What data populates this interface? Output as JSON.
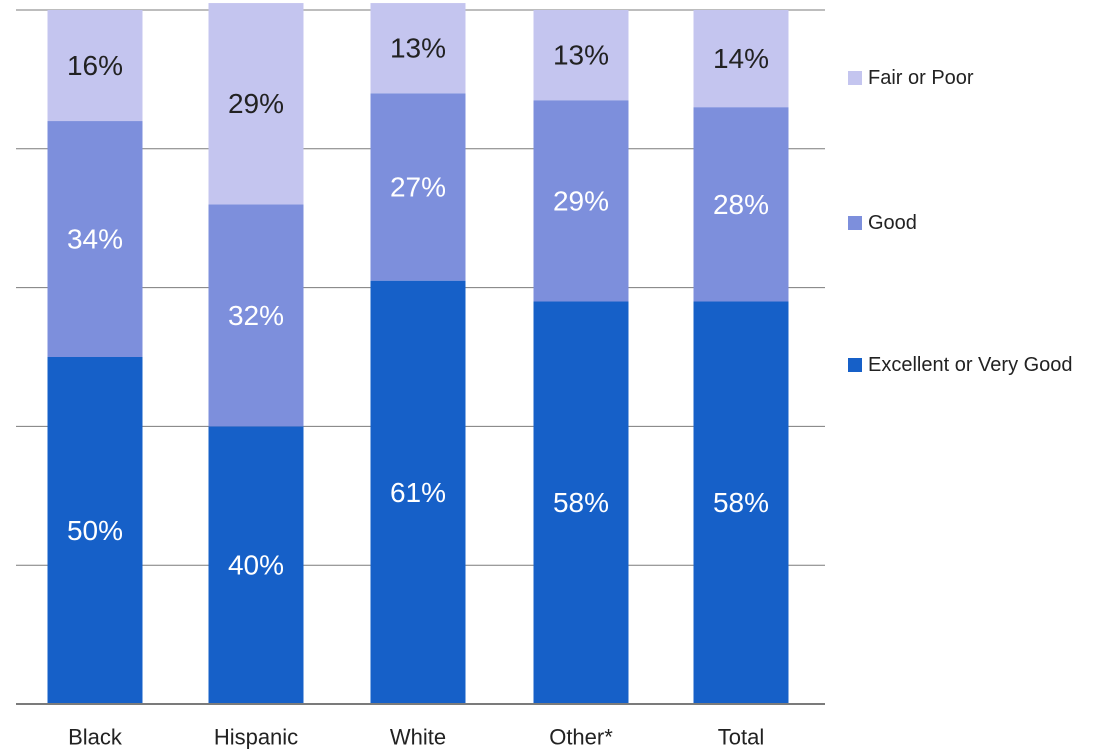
{
  "chart_data": {
    "type": "bar",
    "stacked": true,
    "categories": [
      "Black",
      "Hispanic",
      "White",
      "Other*",
      "Total"
    ],
    "series": [
      {
        "name": "Excellent or Very Good",
        "color": "#1660c8",
        "label_color": "#ffffff",
        "values": [
          50,
          40,
          61,
          58,
          58
        ],
        "labels": [
          "50%",
          "40%",
          "61%",
          "58%",
          "58%"
        ]
      },
      {
        "name": "Good",
        "color": "#7d8fdc",
        "label_color": "#ffffff",
        "values": [
          34,
          32,
          27,
          29,
          28
        ],
        "labels": [
          "34%",
          "32%",
          "27%",
          "29%",
          "28%"
        ]
      },
      {
        "name": "Fair or Poor",
        "color": "#c4c5ef",
        "label_color": "#222222",
        "values": [
          16,
          29,
          13,
          13,
          14
        ],
        "labels": [
          "16%",
          "29%",
          "13%",
          "13%",
          "14%"
        ]
      }
    ],
    "legend": [
      {
        "name": "Fair or Poor",
        "color": "#c4c5ef"
      },
      {
        "name": "Good",
        "color": "#7d8fdc"
      },
      {
        "name": "Excellent or Very Good",
        "color": "#1660c8"
      }
    ],
    "ylim": [
      0,
      100
    ],
    "y_gridlines": [
      20,
      40,
      60,
      80,
      100
    ],
    "grid": true,
    "legend_position": "right"
  }
}
